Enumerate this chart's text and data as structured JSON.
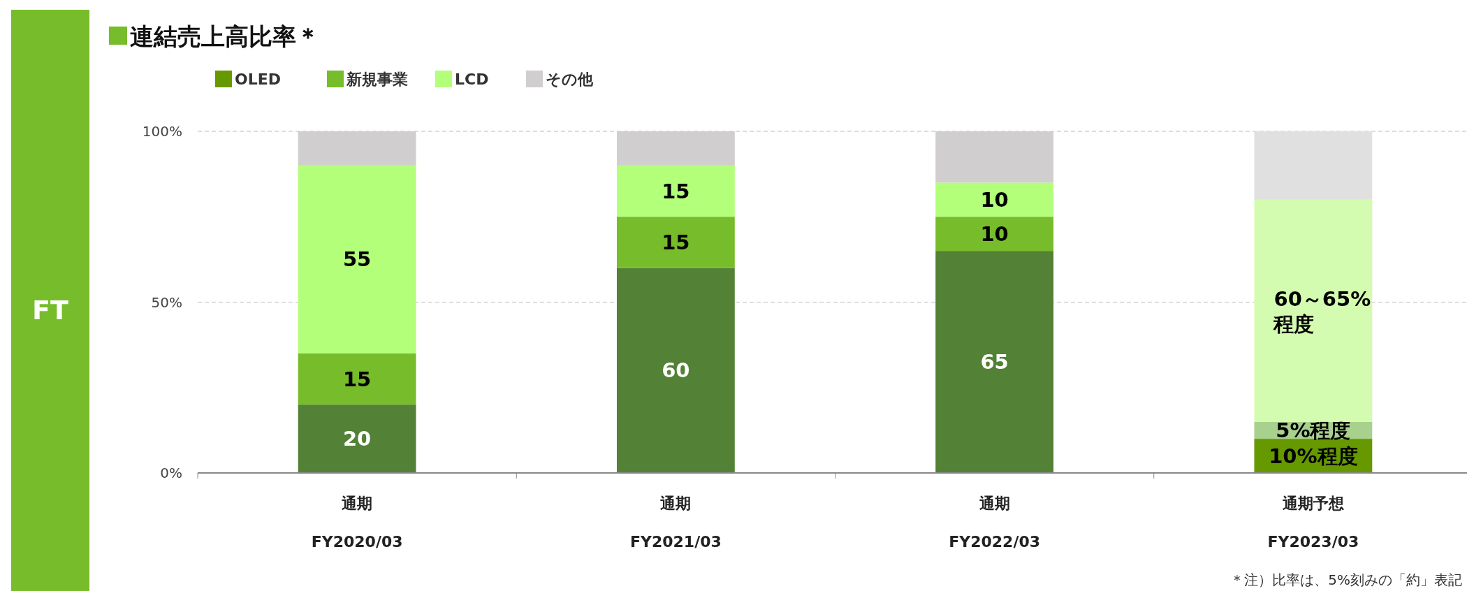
{
  "chart_data": {
    "type": "bar",
    "stacked": true,
    "title": "連結売上高比率＊",
    "categories": [
      "通期\nFY2020/03",
      "通期\nFY2021/03",
      "通期\nFY2022/03",
      "通期予想\nFY2023/03"
    ],
    "series": [
      {
        "name": "OLED",
        "color": "#669900",
        "colors": [
          "#538135",
          "#538135",
          "#538135",
          "#669900"
        ],
        "values": [
          20,
          60,
          65,
          10
        ],
        "value_labels": [
          "20",
          "60",
          "65",
          "10%程度"
        ]
      },
      {
        "name": "新規事業",
        "color": "#77bc2a",
        "colors": [
          "#77bc2a",
          "#77bc2a",
          "#77bc2a",
          "#a9d18e"
        ],
        "values": [
          15,
          15,
          10,
          5
        ],
        "value_labels": [
          "15",
          "15",
          "10",
          "5%程度"
        ]
      },
      {
        "name": "LCD",
        "color": "#b3ff7a",
        "colors": [
          "#b3ff7a",
          "#b3ff7a",
          "#b3ff7a",
          "#d4fcb0"
        ],
        "values": [
          55,
          15,
          10,
          65
        ],
        "value_labels": [
          "55",
          "15",
          "10",
          "60～65%\n程度"
        ]
      },
      {
        "name": "その他",
        "color": "#d0cece",
        "colors": [
          "#d0cece",
          "#d0cece",
          "#d0cece",
          "#e0e0e0"
        ],
        "values": [
          10,
          10,
          15,
          20
        ]
      }
    ],
    "ylim": [
      0,
      100
    ],
    "yticks": [
      {
        "value": 0,
        "label": "0%"
      },
      {
        "value": 50,
        "label": "50%"
      },
      {
        "value": 100,
        "label": "100%"
      }
    ],
    "grid": "y",
    "legend": "top",
    "annotations": [
      "FT",
      "＊注）比率は、5%刻みの「約」表記"
    ]
  }
}
